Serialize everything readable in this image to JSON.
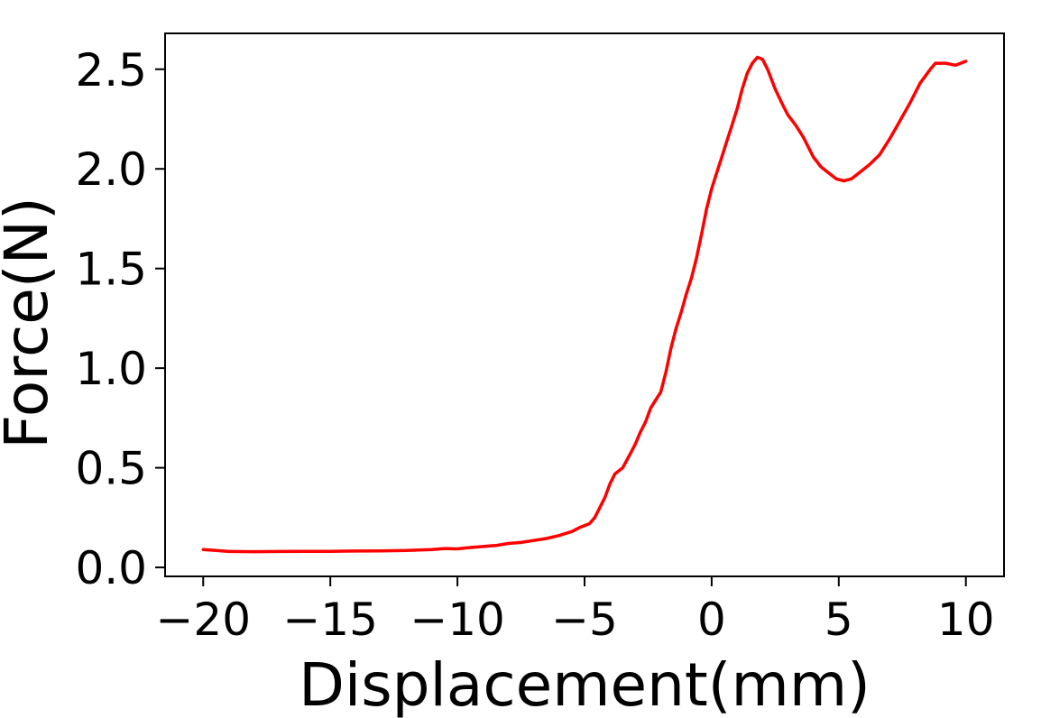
{
  "chart_data": {
    "type": "line",
    "title": "",
    "xlabel": "Displacement(mm)",
    "ylabel": "Force(N)",
    "xlim": [
      -21.5,
      11.5
    ],
    "ylim": [
      -0.045,
      2.68
    ],
    "x_ticks": [
      -20,
      -15,
      -10,
      -5,
      0,
      5,
      10
    ],
    "x_tick_labels": [
      "−20",
      "−15",
      "−10",
      "−5",
      "0",
      "5",
      "10"
    ],
    "y_ticks": [
      0.0,
      0.5,
      1.0,
      1.5,
      2.0,
      2.5
    ],
    "y_tick_labels": [
      "0.0",
      "0.5",
      "1.0",
      "1.5",
      "2.0",
      "2.5"
    ],
    "grid": false,
    "legend": "none",
    "series": [
      {
        "color": "#ff0000",
        "points": [
          [
            -20.0,
            0.09
          ],
          [
            -19.5,
            0.085
          ],
          [
            -19.0,
            0.08
          ],
          [
            -18.0,
            0.079
          ],
          [
            -17.0,
            0.08
          ],
          [
            -16.0,
            0.081
          ],
          [
            -15.0,
            0.081
          ],
          [
            -14.0,
            0.082
          ],
          [
            -13.0,
            0.083
          ],
          [
            -12.0,
            0.085
          ],
          [
            -11.0,
            0.09
          ],
          [
            -10.5,
            0.095
          ],
          [
            -10.0,
            0.093
          ],
          [
            -9.5,
            0.1
          ],
          [
            -9.0,
            0.105
          ],
          [
            -8.5,
            0.11
          ],
          [
            -8.0,
            0.12
          ],
          [
            -7.5,
            0.125
          ],
          [
            -7.0,
            0.135
          ],
          [
            -6.5,
            0.145
          ],
          [
            -6.0,
            0.16
          ],
          [
            -5.5,
            0.18
          ],
          [
            -5.2,
            0.2
          ],
          [
            -4.8,
            0.22
          ],
          [
            -4.6,
            0.25
          ],
          [
            -4.4,
            0.3
          ],
          [
            -4.2,
            0.35
          ],
          [
            -4.0,
            0.42
          ],
          [
            -3.8,
            0.47
          ],
          [
            -3.5,
            0.5
          ],
          [
            -3.2,
            0.57
          ],
          [
            -3.0,
            0.62
          ],
          [
            -2.8,
            0.68
          ],
          [
            -2.6,
            0.73
          ],
          [
            -2.4,
            0.8
          ],
          [
            -2.2,
            0.84
          ],
          [
            -2.0,
            0.88
          ],
          [
            -1.8,
            0.98
          ],
          [
            -1.6,
            1.1
          ],
          [
            -1.4,
            1.2
          ],
          [
            -1.2,
            1.28
          ],
          [
            -1.0,
            1.37
          ],
          [
            -0.8,
            1.45
          ],
          [
            -0.6,
            1.55
          ],
          [
            -0.4,
            1.67
          ],
          [
            -0.2,
            1.8
          ],
          [
            0.0,
            1.9
          ],
          [
            0.2,
            1.98
          ],
          [
            0.4,
            2.06
          ],
          [
            0.6,
            2.14
          ],
          [
            0.8,
            2.22
          ],
          [
            1.0,
            2.3
          ],
          [
            1.2,
            2.4
          ],
          [
            1.4,
            2.48
          ],
          [
            1.6,
            2.53
          ],
          [
            1.8,
            2.56
          ],
          [
            2.0,
            2.55
          ],
          [
            2.2,
            2.5
          ],
          [
            2.5,
            2.4
          ],
          [
            2.8,
            2.32
          ],
          [
            3.0,
            2.27
          ],
          [
            3.3,
            2.22
          ],
          [
            3.6,
            2.16
          ],
          [
            4.0,
            2.06
          ],
          [
            4.3,
            2.01
          ],
          [
            4.6,
            1.98
          ],
          [
            4.9,
            1.95
          ],
          [
            5.2,
            1.94
          ],
          [
            5.5,
            1.95
          ],
          [
            5.8,
            1.98
          ],
          [
            6.2,
            2.02
          ],
          [
            6.6,
            2.07
          ],
          [
            7.0,
            2.15
          ],
          [
            7.4,
            2.24
          ],
          [
            7.8,
            2.33
          ],
          [
            8.2,
            2.43
          ],
          [
            8.6,
            2.5
          ],
          [
            8.8,
            2.53
          ],
          [
            9.2,
            2.53
          ],
          [
            9.6,
            2.52
          ],
          [
            10.0,
            2.54
          ]
        ]
      }
    ]
  }
}
